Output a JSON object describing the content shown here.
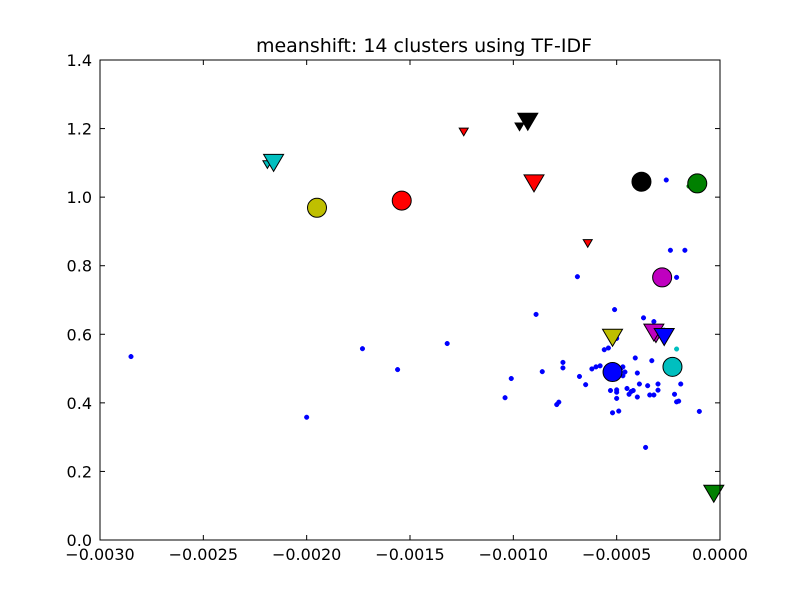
{
  "chart_data": {
    "type": "scatter",
    "title": "meanshift: 14 clusters using TF-IDF",
    "xlabel": "",
    "ylabel": "",
    "xlim": [
      -0.003,
      0.0
    ],
    "ylim": [
      0.0,
      1.4
    ],
    "x_ticks": [
      -0.003,
      -0.0025,
      -0.002,
      -0.0015,
      -0.001,
      -0.0005,
      0.0
    ],
    "x_tick_labels": [
      "−0.0030",
      "−0.0025",
      "−0.0020",
      "−0.0015",
      "−0.0010",
      "−0.0005",
      "0.0000"
    ],
    "y_ticks": [
      0.0,
      0.2,
      0.4,
      0.6,
      0.8,
      1.0,
      1.2,
      1.4
    ],
    "y_tick_labels": [
      "0.0",
      "0.2",
      "0.4",
      "0.6",
      "0.8",
      "1.0",
      "1.2",
      "1.4"
    ],
    "grid": false,
    "legend": "none",
    "series": [
      {
        "color": "#0000ff",
        "marker": "dot",
        "points": [
          [
            -0.00285,
            0.535
          ],
          [
            -0.002,
            0.358
          ],
          [
            -0.00173,
            0.558
          ],
          [
            -0.00156,
            0.497
          ],
          [
            -0.00132,
            0.573
          ],
          [
            -0.00104,
            0.415
          ],
          [
            -0.00101,
            0.471
          ],
          [
            -0.00089,
            0.658
          ],
          [
            -0.00086,
            0.491
          ],
          [
            -0.00079,
            0.395
          ],
          [
            -0.00078,
            0.402
          ],
          [
            -0.00076,
            0.518
          ],
          [
            -0.00076,
            0.502
          ],
          [
            -0.00069,
            0.768
          ],
          [
            -0.00068,
            0.477
          ],
          [
            -0.00065,
            0.453
          ],
          [
            -0.00062,
            0.499
          ],
          [
            -0.0006,
            0.505
          ],
          [
            -0.00058,
            0.508
          ],
          [
            -0.00056,
            0.555
          ],
          [
            -0.00054,
            0.56
          ],
          [
            -0.00053,
            0.436
          ],
          [
            -0.00052,
            0.371
          ],
          [
            -0.00051,
            0.672
          ],
          [
            -0.0005,
            0.588
          ],
          [
            -0.0005,
            0.438
          ],
          [
            -0.0005,
            0.431
          ],
          [
            -0.0005,
            0.413
          ],
          [
            -0.00049,
            0.376
          ],
          [
            -0.00048,
            0.5
          ],
          [
            -0.00047,
            0.479
          ],
          [
            -0.00047,
            0.505
          ],
          [
            -0.00046,
            0.49
          ],
          [
            -0.00045,
            0.442
          ],
          [
            -0.00044,
            0.425
          ],
          [
            -0.00043,
            0.433
          ],
          [
            -0.00042,
            0.436
          ],
          [
            -0.00041,
            0.531
          ],
          [
            -0.0004,
            0.417
          ],
          [
            -0.0004,
            0.487
          ],
          [
            -0.00039,
            0.455
          ],
          [
            -0.00037,
            0.648
          ],
          [
            -0.00036,
            0.27
          ],
          [
            -0.00035,
            0.45
          ],
          [
            -0.00034,
            0.423
          ],
          [
            -0.00033,
            0.523
          ],
          [
            -0.00032,
            0.423
          ],
          [
            -0.00032,
            0.637
          ],
          [
            -0.0003,
            0.437
          ],
          [
            -0.0003,
            0.455
          ],
          [
            -0.00027,
            0.612
          ],
          [
            -0.00026,
            1.05
          ],
          [
            -0.00024,
            0.845
          ],
          [
            -0.00022,
            0.425
          ],
          [
            -0.00021,
            0.766
          ],
          [
            -0.00021,
            0.403
          ],
          [
            -0.0002,
            0.405
          ],
          [
            -0.00019,
            0.455
          ],
          [
            -0.00017,
            0.845
          ],
          [
            -0.0001,
            0.375
          ]
        ]
      },
      {
        "color": "#008000",
        "marker": "dot",
        "points": [
          [
            -0.00015,
            1.032
          ]
        ]
      },
      {
        "color": "#00bfbf",
        "marker": "dot",
        "points": [
          [
            -0.00021,
            0.557
          ]
        ]
      }
    ],
    "cluster_centers": [
      {
        "x": -0.00195,
        "y": 0.969,
        "color": "#bfbf00"
      },
      {
        "x": -0.00154,
        "y": 0.99,
        "color": "#ff0000"
      },
      {
        "x": -0.00038,
        "y": 1.045,
        "color": "#000000"
      },
      {
        "x": -0.00011,
        "y": 1.04,
        "color": "#008000"
      },
      {
        "x": -0.00028,
        "y": 0.766,
        "color": "#bf00bf"
      },
      {
        "x": -0.00052,
        "y": 0.49,
        "color": "#0000ff"
      },
      {
        "x": -0.00023,
        "y": 0.505,
        "color": "#00bfbf"
      }
    ],
    "large_triangles": [
      {
        "x": -0.00216,
        "y": 1.1,
        "color": "#00bfbf"
      },
      {
        "x": -0.00093,
        "y": 1.22,
        "color": "#000000"
      },
      {
        "x": -0.0009,
        "y": 1.04,
        "color": "#ff0000"
      },
      {
        "x": -0.00052,
        "y": 0.59,
        "color": "#bfbf00"
      },
      {
        "x": -0.00032,
        "y": 0.605,
        "color": "#bf00bf"
      },
      {
        "x": -0.00027,
        "y": 0.592,
        "color": "#0000ff"
      },
      {
        "x": -3e-05,
        "y": 0.135,
        "color": "#008000"
      }
    ],
    "small_triangles": [
      {
        "x": -0.00219,
        "y": 1.095,
        "color": "#00bfbf"
      },
      {
        "x": -0.00097,
        "y": 1.205,
        "color": "#000000"
      },
      {
        "x": -0.00124,
        "y": 1.19,
        "color": "#ff0000"
      },
      {
        "x": -0.00064,
        "y": 0.865,
        "color": "#ff0000"
      },
      {
        "x": -0.00031,
        "y": 0.587,
        "color": "#bf00bf"
      }
    ]
  }
}
